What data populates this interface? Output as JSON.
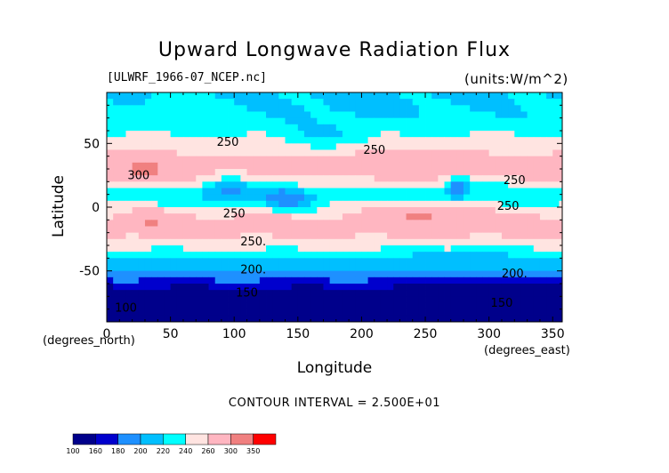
{
  "chart_data": {
    "type": "heatmap",
    "title": "Upward Longwave Radiation Flux",
    "dataset_label": "[ULWRF_1966-07_NCEP.nc]",
    "units_label": "(units:W/m^2)",
    "xlabel": "Longitude",
    "ylabel": "Latitude",
    "x_unit_label": "(degrees_north)",
    "x_unit_label_right": "(degrees_east)",
    "xlim": [
      0,
      357.5
    ],
    "ylim": [
      -90,
      90
    ],
    "x_ticks": [
      0,
      50,
      100,
      150,
      200,
      250,
      300,
      350
    ],
    "y_ticks": [
      -50,
      0,
      50
    ],
    "contour_interval_text": "CONTOUR INTERVAL = 2.500E+01",
    "colorbar": {
      "levels": [
        100,
        160,
        180,
        200,
        220,
        240,
        260,
        300,
        350
      ],
      "colors": [
        "#00008b",
        "#0000cd",
        "#1e90ff",
        "#00bfff",
        "#00ffff",
        "#ffe4e1",
        "#ffb6c1",
        "#f08080",
        "#ff0000"
      ]
    },
    "contour_labels": [
      {
        "text": "250",
        "lon": 95,
        "lat": 48
      },
      {
        "text": "250",
        "lon": 210,
        "lat": 42
      },
      {
        "text": "250",
        "lon": 320,
        "lat": 18
      },
      {
        "text": "250",
        "lon": 315,
        "lat": -2
      },
      {
        "text": "250",
        "lon": 100,
        "lat": -8
      },
      {
        "text": "250.",
        "lon": 115,
        "lat": -30
      },
      {
        "text": "300",
        "lon": 25,
        "lat": 22
      },
      {
        "text": "200.",
        "lon": 115,
        "lat": -52
      },
      {
        "text": "200.",
        "lon": 320,
        "lat": -55
      },
      {
        "text": "150",
        "lon": 110,
        "lat": -70
      },
      {
        "text": "150",
        "lon": 310,
        "lat": -78
      },
      {
        "text": "100",
        "lon": 15,
        "lat": -82
      }
    ],
    "zonal_profile": [
      {
        "lat": 90,
        "base": 215
      },
      {
        "lat": 80,
        "base": 220
      },
      {
        "lat": 70,
        "base": 225
      },
      {
        "lat": 60,
        "base": 235
      },
      {
        "lat": 50,
        "base": 250
      },
      {
        "lat": 40,
        "base": 262
      },
      {
        "lat": 30,
        "base": 270
      },
      {
        "lat": 20,
        "base": 250
      },
      {
        "lat": 10,
        "base": 225
      },
      {
        "lat": 0,
        "base": 245
      },
      {
        "lat": -10,
        "base": 272
      },
      {
        "lat": -20,
        "base": 268
      },
      {
        "lat": -30,
        "base": 250
      },
      {
        "lat": -40,
        "base": 220
      },
      {
        "lat": -50,
        "base": 205
      },
      {
        "lat": -60,
        "base": 170
      },
      {
        "lat": -70,
        "base": 140
      },
      {
        "lat": -80,
        "base": 118
      },
      {
        "lat": -90,
        "base": 100
      }
    ],
    "anomalies": [
      {
        "lon": 30,
        "lat": 28,
        "amp": 45,
        "slon": 20,
        "slat": 10
      },
      {
        "lon": 355,
        "lat": 28,
        "amp": 35,
        "slon": 12,
        "slat": 8
      },
      {
        "lon": 235,
        "lat": 30,
        "amp": 20,
        "slon": 40,
        "slat": 12
      },
      {
        "lon": 275,
        "lat": 15,
        "amp": -60,
        "slon": 10,
        "slat": 8
      },
      {
        "lon": 95,
        "lat": 12,
        "amp": -45,
        "slon": 18,
        "slat": 10
      },
      {
        "lon": 140,
        "lat": 5,
        "amp": -45,
        "slon": 20,
        "slat": 10
      },
      {
        "lon": 35,
        "lat": -12,
        "amp": 35,
        "slon": 10,
        "slat": 8
      },
      {
        "lon": 250,
        "lat": -5,
        "amp": 45,
        "slon": 30,
        "slat": 8
      },
      {
        "lon": 170,
        "lat": 55,
        "amp": -25,
        "slon": 30,
        "slat": 10
      },
      {
        "lon": 60,
        "lat": 80,
        "amp": 15,
        "slon": 40,
        "slat": 8
      },
      {
        "lon": 200,
        "lat": 78,
        "amp": -10,
        "slon": 50,
        "slat": 8
      },
      {
        "lon": 280,
        "lat": -40,
        "amp": -15,
        "slon": 40,
        "slat": 8
      },
      {
        "lon": 300,
        "lat": -65,
        "amp": -20,
        "slon": 50,
        "slat": 10
      }
    ]
  }
}
